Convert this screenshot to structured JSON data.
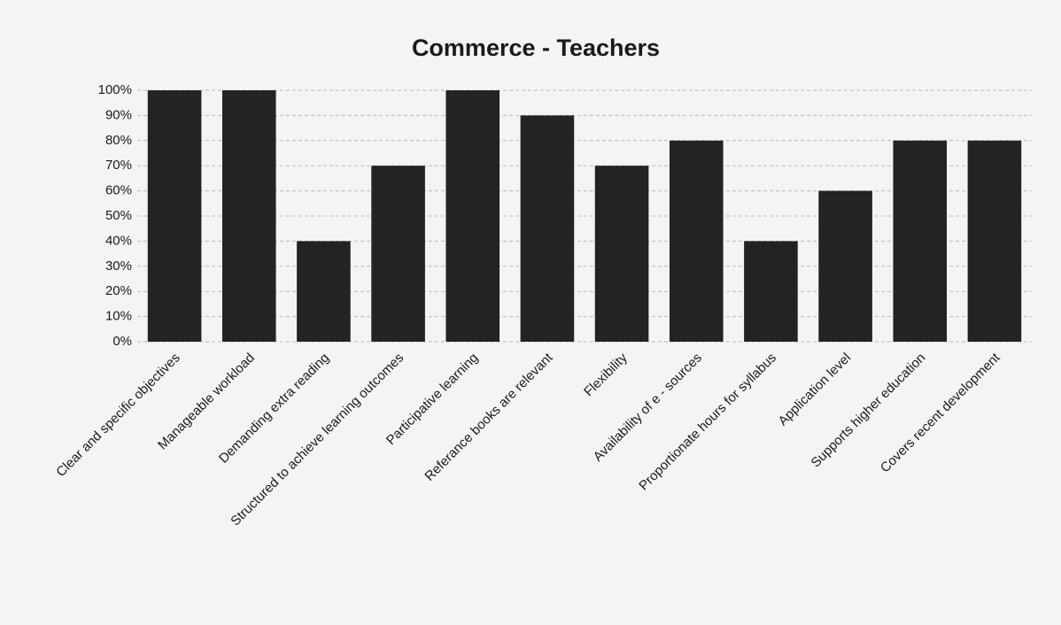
{
  "chart_data": {
    "type": "bar",
    "title": "Commerce - Teachers",
    "categories": [
      "Clear and specific objectives",
      "Manageable workload",
      "Demanding extra reading",
      "Structured to achieve learning outcomes",
      "Participative learning",
      "Referance books are relevant",
      "Flexibility",
      "Availability of e - sources",
      "Proportionate hours for syllabus",
      "Application level",
      "Supports higher education",
      "Covers recent development"
    ],
    "values": [
      100,
      100,
      40,
      70,
      100,
      90,
      70,
      80,
      40,
      60,
      80,
      80
    ],
    "color": "#232323",
    "ylim": [
      0,
      100
    ],
    "yticks": [
      {
        "value": 0,
        "label": "0%"
      },
      {
        "value": 10,
        "label": "10%"
      },
      {
        "value": 20,
        "label": "20%"
      },
      {
        "value": 30,
        "label": "30%"
      },
      {
        "value": 40,
        "label": "40%"
      },
      {
        "value": 50,
        "label": "50%"
      },
      {
        "value": 60,
        "label": "60%"
      },
      {
        "value": 70,
        "label": "70%"
      },
      {
        "value": 80,
        "label": "80%"
      },
      {
        "value": 90,
        "label": "90%"
      },
      {
        "value": 100,
        "label": "100%"
      }
    ],
    "grid": true
  }
}
